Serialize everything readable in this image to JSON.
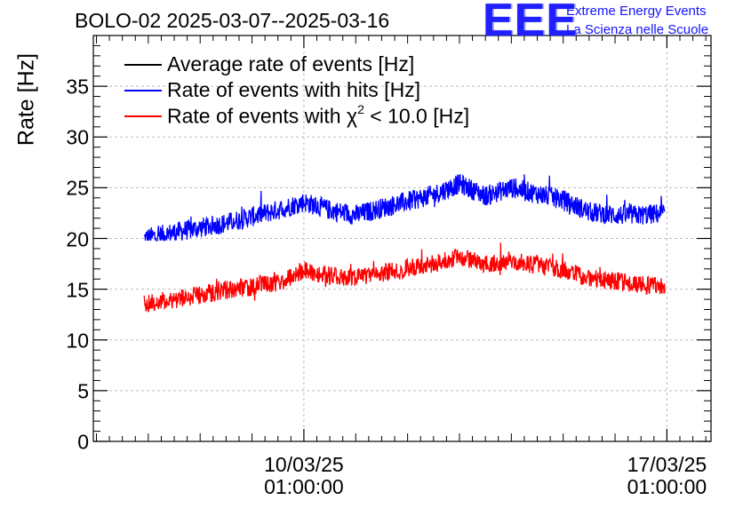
{
  "chart_data": {
    "type": "line",
    "title": "BOLO-02 2025-03-07--2025-03-16",
    "xlabel": "",
    "ylabel": "Rate [Hz]",
    "ylim": [
      0,
      40
    ],
    "yticks": [
      "0",
      "5",
      "10",
      "15",
      "20",
      "25",
      "30",
      "35"
    ],
    "xtick_labels": [
      {
        "date": "10/03/25",
        "time": "01:00:00"
      },
      {
        "date": "17/03/25",
        "time": "01:00:00"
      }
    ],
    "x_unit": "days since 10/03/25 01:00:00",
    "xlim": [
      -4.06,
      7.85
    ],
    "grid": true,
    "legend_position": "top-left",
    "series": [
      {
        "name": "Rate of events with hits [Hz]",
        "color": "#0000ff",
        "x_start": -3.08,
        "x_end": 6.96,
        "trend_x": [
          -3.08,
          -2.5,
          -1.5,
          -0.5,
          0,
          0.5,
          1.0,
          1.5,
          2.5,
          3.0,
          3.5,
          4.0,
          4.5,
          5.0,
          5.5,
          6.0,
          6.5,
          6.96
        ],
        "trend_y": [
          20.0,
          20.6,
          21.5,
          22.8,
          23.6,
          22.8,
          22.3,
          23.0,
          24.3,
          25.4,
          24.2,
          25.0,
          24.4,
          23.8,
          22.6,
          22.3,
          22.3,
          22.5
        ],
        "noise_amplitude": 1.0,
        "min": 19.8,
        "max": 27.2
      },
      {
        "name": "Rate of events with χ² < 10.0 [Hz]",
        "color": "#ff0000",
        "x_start": -3.08,
        "x_end": 6.96,
        "trend_x": [
          -3.08,
          -2.5,
          -1.5,
          -0.5,
          0,
          0.5,
          1.0,
          1.5,
          2.5,
          3.0,
          3.5,
          4.0,
          4.5,
          5.0,
          5.5,
          6.0,
          6.5,
          6.96
        ],
        "trend_y": [
          13.6,
          14.0,
          14.9,
          15.6,
          16.9,
          16.3,
          16.2,
          16.6,
          17.5,
          18.2,
          17.5,
          17.8,
          17.3,
          16.9,
          16.1,
          15.8,
          15.4,
          15.4
        ],
        "noise_amplitude": 0.9,
        "min": 12.2,
        "max": 20.1
      }
    ],
    "legend": [
      {
        "label": "Average rate of events [Hz]",
        "color": "#000000"
      },
      {
        "label": "Rate of events with hits [Hz]",
        "color": "#0000ff"
      },
      {
        "label_prefix": "Rate of events with ",
        "label_symbol": "χ",
        "label_sup": "2",
        "label_suffix": " < 10.0 [Hz]",
        "color": "#ff0000"
      }
    ]
  },
  "branding": {
    "logo": "EEE",
    "line1": "Extreme Energy Events",
    "line2": "La Scienza nelle Scuole"
  }
}
